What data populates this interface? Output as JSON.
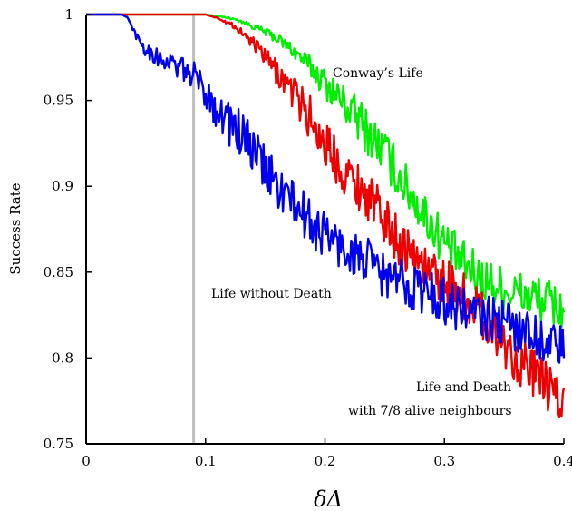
{
  "chart_data": {
    "type": "line",
    "xlabel": "δΔ",
    "ylabel": "Success Rate",
    "xlim": [
      0,
      0.4
    ],
    "ylim": [
      0.75,
      1.0
    ],
    "x_ticks": [
      "0",
      "0.1",
      "0.2",
      "0.3",
      "0.4"
    ],
    "y_ticks": [
      "0.75",
      "0.8",
      "0.85",
      "0.9",
      "0.95",
      "1"
    ],
    "grid": false,
    "reference_line_x": 0.09,
    "reference_line_color": "#bfbfbf",
    "series": [
      {
        "color": "#00ee00",
        "x": [
          0.0,
          0.02,
          0.04,
          0.06,
          0.08,
          0.1,
          0.11,
          0.12,
          0.13,
          0.14,
          0.15,
          0.16,
          0.17,
          0.18,
          0.19,
          0.2,
          0.21,
          0.22,
          0.23,
          0.24,
          0.25,
          0.26,
          0.27,
          0.28,
          0.29,
          0.3,
          0.31,
          0.32,
          0.33,
          0.34,
          0.35,
          0.36,
          0.37,
          0.38,
          0.39,
          0.4
        ],
        "y": [
          1.0,
          1.0,
          1.0,
          1.0,
          1.0,
          1.0,
          0.999,
          0.998,
          0.996,
          0.993,
          0.99,
          0.986,
          0.981,
          0.975,
          0.968,
          0.96,
          0.953,
          0.945,
          0.937,
          0.928,
          0.92,
          0.908,
          0.897,
          0.887,
          0.877,
          0.867,
          0.859,
          0.852,
          0.847,
          0.843,
          0.84,
          0.838,
          0.836,
          0.834,
          0.832,
          0.828
        ]
      },
      {
        "color": "#ee0000",
        "x": [
          0.0,
          0.02,
          0.04,
          0.06,
          0.08,
          0.1,
          0.11,
          0.12,
          0.13,
          0.14,
          0.15,
          0.16,
          0.17,
          0.18,
          0.19,
          0.2,
          0.21,
          0.22,
          0.23,
          0.24,
          0.25,
          0.26,
          0.27,
          0.28,
          0.29,
          0.3,
          0.31,
          0.32,
          0.33,
          0.34,
          0.35,
          0.36,
          0.37,
          0.38,
          0.39,
          0.4
        ],
        "y": [
          1.0,
          1.0,
          1.0,
          1.0,
          1.0,
          1.0,
          0.998,
          0.995,
          0.99,
          0.983,
          0.975,
          0.966,
          0.958,
          0.948,
          0.937,
          0.925,
          0.915,
          0.906,
          0.899,
          0.891,
          0.88,
          0.87,
          0.862,
          0.856,
          0.849,
          0.845,
          0.84,
          0.834,
          0.826,
          0.818,
          0.808,
          0.8,
          0.794,
          0.788,
          0.78,
          0.772
        ]
      },
      {
        "color": "#0000ee",
        "x": [
          0.0,
          0.02,
          0.03,
          0.035,
          0.04,
          0.05,
          0.06,
          0.07,
          0.08,
          0.09,
          0.1,
          0.11,
          0.12,
          0.13,
          0.14,
          0.15,
          0.16,
          0.17,
          0.18,
          0.19,
          0.2,
          0.21,
          0.22,
          0.23,
          0.24,
          0.25,
          0.26,
          0.27,
          0.28,
          0.29,
          0.3,
          0.31,
          0.32,
          0.33,
          0.34,
          0.35,
          0.36,
          0.37,
          0.38,
          0.39,
          0.4
        ],
        "y": [
          1.0,
          1.0,
          1.0,
          0.998,
          0.99,
          0.98,
          0.975,
          0.972,
          0.968,
          0.965,
          0.955,
          0.945,
          0.937,
          0.93,
          0.92,
          0.91,
          0.9,
          0.893,
          0.885,
          0.877,
          0.873,
          0.866,
          0.862,
          0.858,
          0.854,
          0.848,
          0.845,
          0.843,
          0.84,
          0.837,
          0.833,
          0.83,
          0.827,
          0.824,
          0.822,
          0.82,
          0.818,
          0.815,
          0.812,
          0.808,
          0.805
        ]
      }
    ],
    "annotations": [
      {
        "text": "Conway’s Life",
        "series": 0
      },
      {
        "text": "Life without Death",
        "series": 2
      },
      {
        "text": "Life and Death",
        "series": 1
      },
      {
        "text": "with 7/8 alive neighbours",
        "series": 1
      }
    ]
  }
}
